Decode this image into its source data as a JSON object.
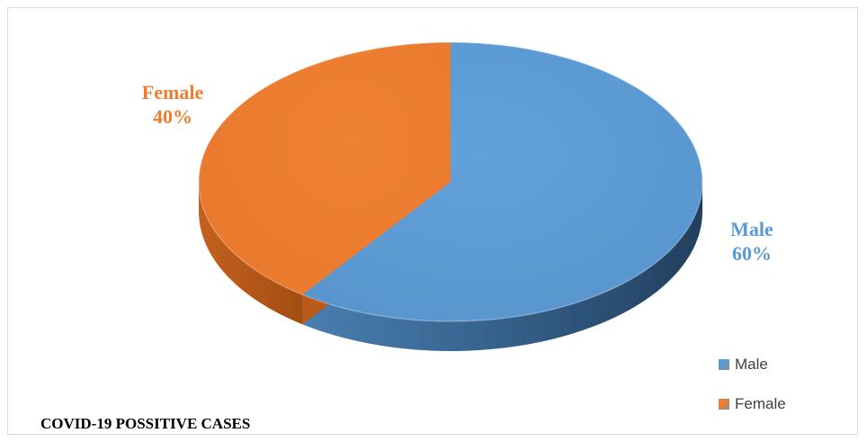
{
  "chart_data": {
    "type": "pie",
    "title": "COVID-19 POSSITIVE CASES",
    "categories": [
      "Male",
      "Female"
    ],
    "values": [
      60,
      40
    ],
    "value_unit": "%",
    "data_labels": [
      {
        "name": "Male",
        "percent": "60%"
      },
      {
        "name": "Female",
        "percent": "40%"
      }
    ],
    "colors": [
      "#5b9bd5",
      "#ed7d31"
    ],
    "legend_position": "bottom-right",
    "style": "3d"
  }
}
